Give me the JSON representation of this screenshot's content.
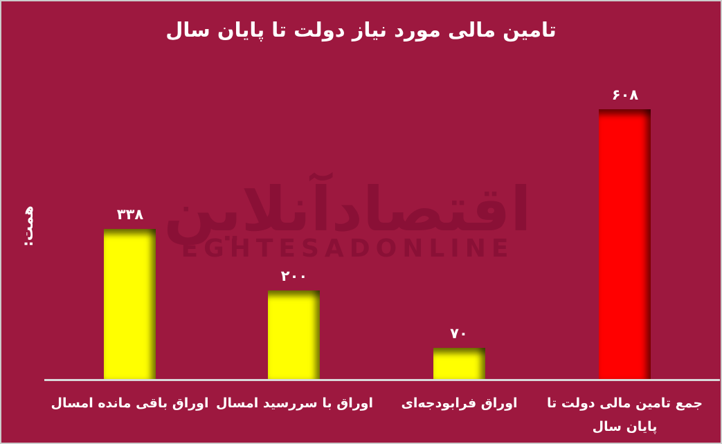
{
  "watermark": {
    "persian": "اقتصادآنلاین",
    "latin": "EGHTESADONLINE",
    "color": "#8a1036"
  },
  "chart_data": {
    "type": "bar",
    "title": "تامین مالی مورد نیاز دولت تا پایان سال",
    "xlabel": "",
    "ylabel": "همت:",
    "categories": [
      "اوراق باقی مانده امسال",
      "اوراق با سررسید امسال",
      "اوراق فرابودجه‌ای",
      "جمع تامین مالی دولت تا\nپایان سال"
    ],
    "values": [
      338,
      200,
      70,
      608
    ],
    "value_labels": [
      "۳۳۸",
      "۲۰۰",
      "۷۰",
      "۶۰۸"
    ],
    "series_colors": [
      "#ffff00",
      "#ffff00",
      "#ffff00",
      "#ff0000"
    ],
    "background_color": "#9d183f",
    "axis_line_color": "#d9d9d9",
    "text_color": "#ffffff",
    "frame_border_color": "#cccccc",
    "ylim": [
      0,
      650
    ],
    "grid": "off",
    "legend": "none"
  }
}
